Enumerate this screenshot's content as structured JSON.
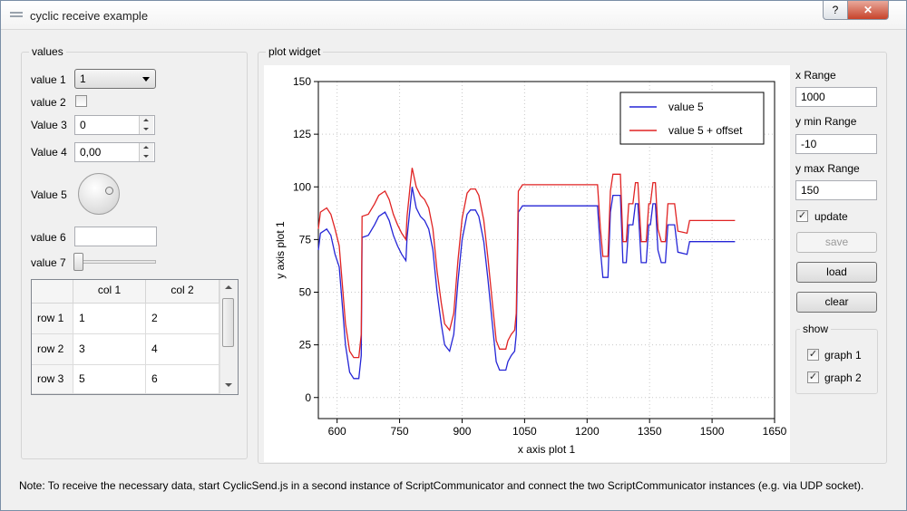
{
  "window": {
    "title": "cyclic receive example",
    "help_label": "?",
    "close_label": "✕"
  },
  "values_group": {
    "title": "values",
    "value1": {
      "label": "value 1",
      "selected": "1"
    },
    "value2": {
      "label": "value 2",
      "checked": false
    },
    "value3": {
      "label": "Value 3",
      "value": "0"
    },
    "value4": {
      "label": "Value 4",
      "value": "0,00"
    },
    "value5": {
      "label": "Value 5"
    },
    "value6": {
      "label": "value 6",
      "value": ""
    },
    "value7": {
      "label": "value 7"
    },
    "table": {
      "columns": [
        "col 1",
        "col 2"
      ],
      "rows": [
        {
          "header": "row 1",
          "cells": [
            "1",
            "2"
          ]
        },
        {
          "header": "row 2",
          "cells": [
            "3",
            "4"
          ]
        },
        {
          "header": "row 3",
          "cells": [
            "5",
            "6"
          ]
        }
      ]
    }
  },
  "plot_group": {
    "title": "plot widget"
  },
  "controls": {
    "x_range_label": "x Range",
    "x_range_value": "1000",
    "y_min_label": "y min Range",
    "y_min_value": "-10",
    "y_max_label": "y max Range",
    "y_max_value": "150",
    "update_label": "update",
    "update_checked": true,
    "save_label": "save",
    "load_label": "load",
    "clear_label": "clear",
    "show_group": {
      "title": "show",
      "graph1_label": "graph 1",
      "graph1_checked": true,
      "graph2_label": "graph 2",
      "graph2_checked": true
    }
  },
  "note": "Note: To receive the necessary data, start CyclicSend.js in a second instance of ScriptCommunicator and connect the two ScriptCommunicator instances (e.g. via UDP socket).",
  "colors": {
    "series1": "#2525d6",
    "series2": "#e02323"
  },
  "chart_data": {
    "type": "line",
    "xlabel": "x axis plot 1",
    "ylabel": "y axis plot 1",
    "xlim": [
      555,
      1650
    ],
    "ylim": [
      -10,
      150
    ],
    "xticks": [
      600,
      750,
      900,
      1050,
      1200,
      1350,
      1500,
      1650
    ],
    "yticks": [
      0,
      25,
      50,
      75,
      100,
      125,
      150
    ],
    "grid": true,
    "legend_position": "top-right",
    "series": [
      {
        "name": "value 5",
        "points": [
          [
            555,
            70
          ],
          [
            560,
            78
          ],
          [
            575,
            80
          ],
          [
            585,
            77
          ],
          [
            595,
            68
          ],
          [
            605,
            62
          ],
          [
            612,
            45
          ],
          [
            620,
            25
          ],
          [
            630,
            12
          ],
          [
            640,
            9
          ],
          [
            652,
            9
          ],
          [
            658,
            20
          ],
          [
            660,
            76
          ],
          [
            675,
            77
          ],
          [
            690,
            82
          ],
          [
            700,
            86
          ],
          [
            715,
            88
          ],
          [
            725,
            84
          ],
          [
            735,
            77
          ],
          [
            745,
            72
          ],
          [
            755,
            68
          ],
          [
            765,
            65
          ],
          [
            768,
            76
          ],
          [
            775,
            90
          ],
          [
            780,
            100
          ],
          [
            790,
            90
          ],
          [
            800,
            86
          ],
          [
            810,
            84
          ],
          [
            820,
            80
          ],
          [
            830,
            70
          ],
          [
            840,
            50
          ],
          [
            850,
            35
          ],
          [
            858,
            25
          ],
          [
            870,
            22
          ],
          [
            880,
            30
          ],
          [
            890,
            55
          ],
          [
            900,
            75
          ],
          [
            912,
            87
          ],
          [
            920,
            89
          ],
          [
            932,
            89
          ],
          [
            940,
            86
          ],
          [
            952,
            74
          ],
          [
            962,
            56
          ],
          [
            972,
            36
          ],
          [
            982,
            17
          ],
          [
            990,
            13
          ],
          [
            1005,
            13
          ],
          [
            1010,
            17
          ],
          [
            1018,
            20
          ],
          [
            1026,
            22
          ],
          [
            1030,
            30
          ],
          [
            1035,
            88
          ],
          [
            1045,
            91
          ],
          [
            1100,
            91
          ],
          [
            1150,
            91
          ],
          [
            1225,
            91
          ],
          [
            1232,
            70
          ],
          [
            1238,
            57
          ],
          [
            1250,
            57
          ],
          [
            1256,
            88
          ],
          [
            1262,
            96
          ],
          [
            1280,
            96
          ],
          [
            1286,
            64
          ],
          [
            1294,
            64
          ],
          [
            1300,
            82
          ],
          [
            1310,
            82
          ],
          [
            1316,
            92
          ],
          [
            1322,
            92
          ],
          [
            1330,
            64
          ],
          [
            1342,
            64
          ],
          [
            1348,
            82
          ],
          [
            1352,
            82
          ],
          [
            1358,
            92
          ],
          [
            1364,
            92
          ],
          [
            1370,
            70
          ],
          [
            1378,
            64
          ],
          [
            1388,
            64
          ],
          [
            1394,
            82
          ],
          [
            1410,
            82
          ],
          [
            1418,
            69
          ],
          [
            1440,
            68
          ],
          [
            1446,
            74
          ],
          [
            1460,
            74
          ],
          [
            1500,
            74
          ],
          [
            1555,
            74
          ]
        ]
      },
      {
        "name": "value 5 + offset",
        "points": [
          [
            555,
            80
          ],
          [
            560,
            88
          ],
          [
            575,
            90
          ],
          [
            585,
            87
          ],
          [
            595,
            80
          ],
          [
            605,
            72
          ],
          [
            612,
            55
          ],
          [
            620,
            35
          ],
          [
            630,
            22
          ],
          [
            640,
            19
          ],
          [
            652,
            19
          ],
          [
            658,
            30
          ],
          [
            660,
            86
          ],
          [
            675,
            87
          ],
          [
            690,
            92
          ],
          [
            700,
            96
          ],
          [
            715,
            98
          ],
          [
            725,
            94
          ],
          [
            735,
            87
          ],
          [
            745,
            82
          ],
          [
            755,
            78
          ],
          [
            765,
            75
          ],
          [
            768,
            86
          ],
          [
            775,
            100
          ],
          [
            780,
            109
          ],
          [
            790,
            100
          ],
          [
            800,
            96
          ],
          [
            810,
            94
          ],
          [
            820,
            90
          ],
          [
            830,
            80
          ],
          [
            840,
            60
          ],
          [
            850,
            45
          ],
          [
            858,
            35
          ],
          [
            870,
            32
          ],
          [
            880,
            40
          ],
          [
            890,
            65
          ],
          [
            900,
            85
          ],
          [
            912,
            97
          ],
          [
            920,
            99
          ],
          [
            932,
            99
          ],
          [
            940,
            96
          ],
          [
            952,
            84
          ],
          [
            962,
            66
          ],
          [
            972,
            46
          ],
          [
            982,
            27
          ],
          [
            990,
            23
          ],
          [
            1005,
            23
          ],
          [
            1010,
            27
          ],
          [
            1018,
            30
          ],
          [
            1026,
            32
          ],
          [
            1030,
            40
          ],
          [
            1035,
            98
          ],
          [
            1045,
            101
          ],
          [
            1100,
            101
          ],
          [
            1150,
            101
          ],
          [
            1225,
            101
          ],
          [
            1232,
            80
          ],
          [
            1238,
            67
          ],
          [
            1250,
            67
          ],
          [
            1256,
            98
          ],
          [
            1262,
            106
          ],
          [
            1280,
            106
          ],
          [
            1286,
            74
          ],
          [
            1294,
            74
          ],
          [
            1300,
            92
          ],
          [
            1310,
            92
          ],
          [
            1316,
            102
          ],
          [
            1322,
            102
          ],
          [
            1330,
            74
          ],
          [
            1342,
            74
          ],
          [
            1348,
            92
          ],
          [
            1352,
            92
          ],
          [
            1358,
            102
          ],
          [
            1364,
            102
          ],
          [
            1370,
            80
          ],
          [
            1378,
            74
          ],
          [
            1388,
            74
          ],
          [
            1394,
            92
          ],
          [
            1410,
            92
          ],
          [
            1418,
            79
          ],
          [
            1440,
            78
          ],
          [
            1446,
            84
          ],
          [
            1460,
            84
          ],
          [
            1500,
            84
          ],
          [
            1555,
            84
          ]
        ]
      }
    ]
  }
}
